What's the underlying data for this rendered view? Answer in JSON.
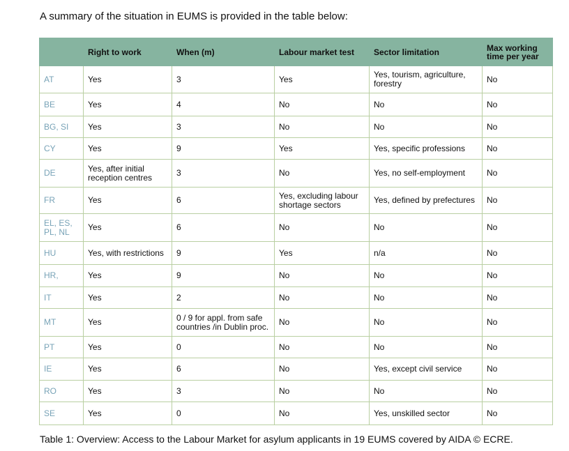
{
  "intro": "A summary of the situation in EUMS is provided in the table below:",
  "table": {
    "headers": [
      "",
      "Right to work",
      "When (m)",
      "Labour market test",
      "Sector limitation",
      "Max working time per year"
    ],
    "rows": [
      {
        "country": "AT",
        "right": "Yes",
        "when": "3",
        "test": "Yes",
        "sector": "Yes, tourism, agriculture, forestry",
        "max": "No"
      },
      {
        "country": "BE",
        "right": "Yes",
        "when": "4",
        "test": "No",
        "sector": "No",
        "max": "No"
      },
      {
        "country": "BG, SI",
        "right": "Yes",
        "when": "3",
        "test": "No",
        "sector": "No",
        "max": "No"
      },
      {
        "country": "CY",
        "right": "Yes",
        "when": "9",
        "test": "Yes",
        "sector": "Yes, specific professions",
        "max": "No"
      },
      {
        "country": "DE",
        "right": "Yes, after initial reception centres",
        "when": "3",
        "test": "No",
        "sector": "Yes, no self-employment",
        "max": "No"
      },
      {
        "country": "FR",
        "right": "Yes",
        "when": "6",
        "test": "Yes, excluding labour shortage sectors",
        "sector": "Yes, defined by prefectures",
        "max": "No"
      },
      {
        "country": "EL, ES, PL, NL",
        "right": "Yes",
        "when": "6",
        "test": "No",
        "sector": "No",
        "max": "No"
      },
      {
        "country": "HU",
        "right": "Yes, with restrictions",
        "when": "9",
        "test": "Yes",
        "sector": "n/a",
        "max": "No"
      },
      {
        "country": "HR,",
        "right": "Yes",
        "when": "9",
        "test": "No",
        "sector": "No",
        "max": "No"
      },
      {
        "country": "IT",
        "right": "Yes",
        "when": "2",
        "test": "No",
        "sector": "No",
        "max": "No"
      },
      {
        "country": "MT",
        "right": "Yes",
        "when": "0 / 9 for appl. from safe countries /in Dublin proc.",
        "test": "No",
        "sector": "No",
        "max": "No"
      },
      {
        "country": "PT",
        "right": "Yes",
        "when": "0",
        "test": "No",
        "sector": "No",
        "max": "No"
      },
      {
        "country": "IE",
        "right": "Yes",
        "when": "6",
        "test": "No",
        "sector": "Yes, except civil service",
        "max": "No"
      },
      {
        "country": "RO",
        "right": "Yes",
        "when": "3",
        "test": "No",
        "sector": "No",
        "max": "No"
      },
      {
        "country": "SE",
        "right": "Yes",
        "when": "0",
        "test": "No",
        "sector": "Yes, unskilled sector",
        "max": "No"
      }
    ]
  },
  "caption": "Table 1: Overview: Access to the Labour Market for asylum applicants in 19 EUMS covered by AIDA © ECRE."
}
